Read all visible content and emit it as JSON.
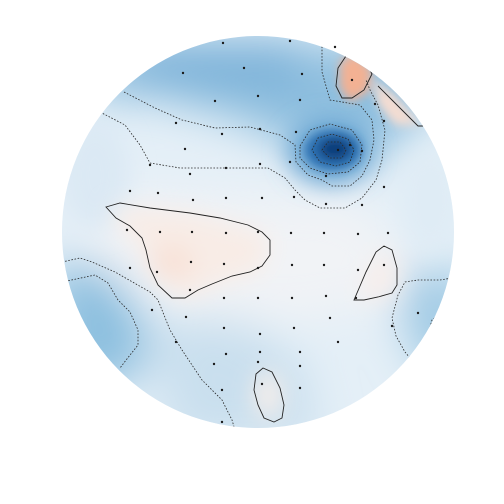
{
  "figure": {
    "type": "topographic-scalp-map",
    "colormap": "RdBu_r",
    "colors": {
      "strong_negative": "#08306b",
      "negative": "#2171b5",
      "mild_negative": "#6baed6",
      "faint_negative": "#c6dbef",
      "neutral": "#f7f7f7",
      "faint_positive": "#fbe6dc",
      "positive": "#f4a582"
    },
    "title": "",
    "colorbar": false,
    "sensors_shown": true,
    "contours_shown": true
  }
}
